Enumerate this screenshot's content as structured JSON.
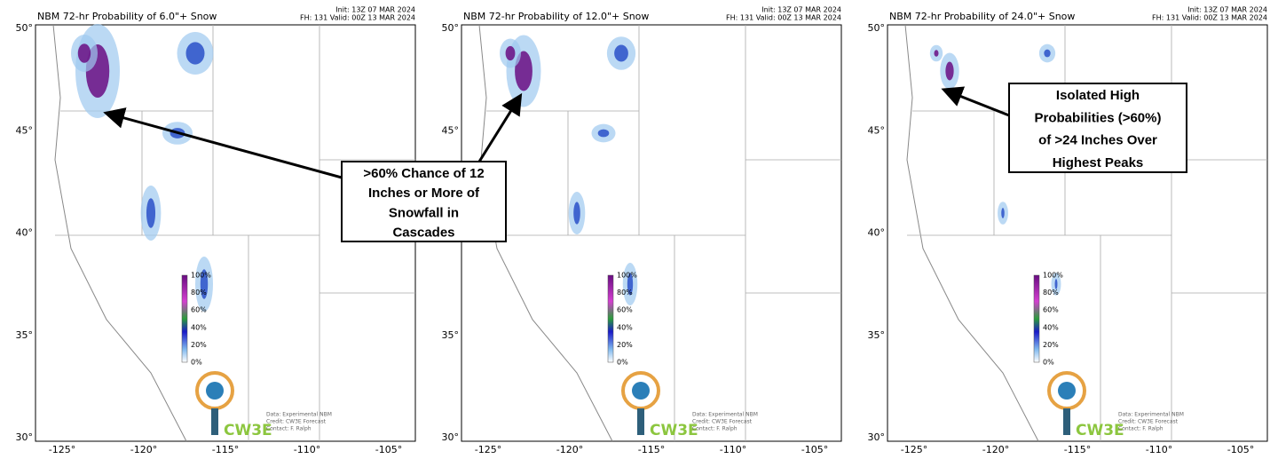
{
  "panels": [
    {
      "title": "NBM 72-hr Probability of 6.0\"+ Snow",
      "init": "Init: 13Z 07 MAR 2024",
      "valid": "FH: 131 Valid: 00Z 13 MAR 2024"
    },
    {
      "title": "NBM 72-hr Probability of 12.0\"+ Snow",
      "init": "Init: 13Z 07 MAR 2024",
      "valid": "FH: 131 Valid: 00Z 13 MAR 2024"
    },
    {
      "title": "NBM 72-hr Probability of 24.0\"+ Snow",
      "init": "Init: 13Z 07 MAR 2024",
      "valid": "FH: 131 Valid: 00Z 13 MAR 2024"
    }
  ],
  "lat_labels": [
    "50°",
    "45°",
    "40°",
    "35°",
    "30°"
  ],
  "lon_labels": [
    "-125°",
    "-120°",
    "-115°",
    "-110°",
    "-105°"
  ],
  "legend_labels": [
    "100%",
    "80%",
    "60%",
    "40%",
    "20%",
    "0%"
  ],
  "logo": {
    "name": "CW3E",
    "credit": [
      "Data: Experimental NBM",
      "Credit: CW3E Forecast",
      "Contact: F. Ralph"
    ]
  },
  "annotations": [
    {
      "lines": [
        ">60% Chance of 12",
        "Inches or More of",
        "Snowfall in",
        "Cascades"
      ]
    },
    {
      "lines": [
        "Isolated High",
        "Probabilities (>60%)",
        "of >24 Inches Over",
        "Highest Peaks"
      ]
    }
  ]
}
